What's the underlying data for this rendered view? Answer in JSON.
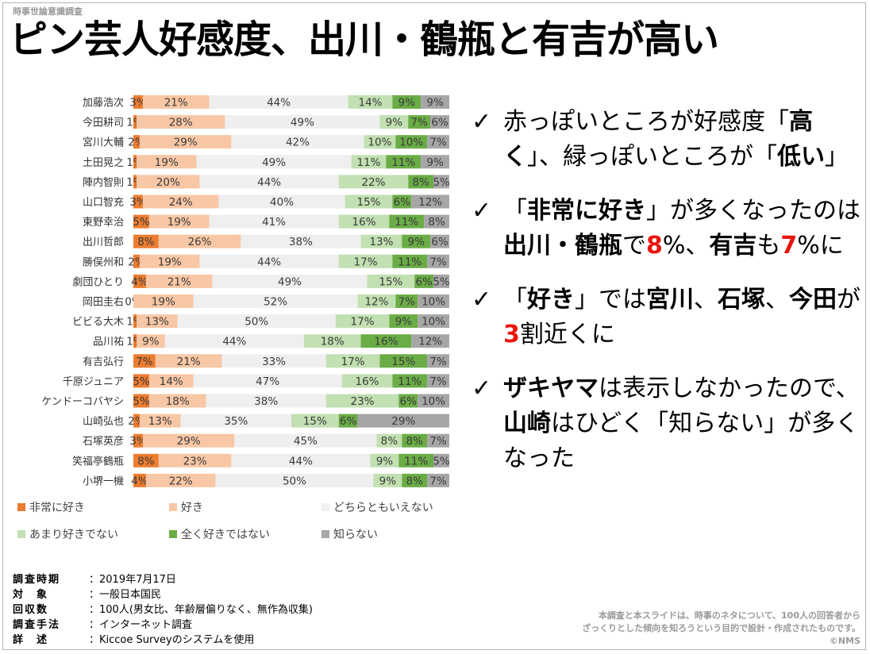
{
  "header_label": "時事世論意識調査",
  "title": "ピン芸人好感度、出川・鶴瓶と有吉が高い",
  "colors": {
    "very_like": "#ec7c30",
    "like": "#f8c7a5",
    "neutral": "#efefef",
    "dislike": "#c2e0b2",
    "strong_dislike": "#6aac46",
    "unknown": "#a6a6a6",
    "accent_red": "#e8160c"
  },
  "chart_data": {
    "type": "bar",
    "orientation": "horizontal-stacked-100",
    "categories": [
      "加藤浩次",
      "今田耕司",
      "宮川大輔",
      "土田晃之",
      "陣内智則",
      "山口智充",
      "東野幸治",
      "出川哲郎",
      "勝俣州和",
      "劇団ひとり",
      "岡田圭右",
      "ビビる大木",
      "品川祐",
      "有吉弘行",
      "千原ジュニア",
      "ケンドーコバヤシ",
      "山崎弘也",
      "石塚英彦",
      "笑福亭鶴瓶",
      "小堺一機"
    ],
    "series": [
      {
        "name": "非常に好き",
        "color": "#ec7c30",
        "values": [
          3,
          1,
          2,
          1,
          1,
          3,
          5,
          8,
          2,
          4,
          0,
          1,
          1,
          7,
          5,
          5,
          2,
          3,
          8,
          4
        ]
      },
      {
        "name": "好き",
        "color": "#f8c7a5",
        "values": [
          21,
          28,
          29,
          19,
          20,
          24,
          19,
          26,
          19,
          21,
          19,
          13,
          9,
          21,
          14,
          18,
          13,
          29,
          23,
          22
        ]
      },
      {
        "name": "どちらともいえない",
        "color": "#efefef",
        "values": [
          44,
          49,
          42,
          49,
          44,
          40,
          41,
          38,
          44,
          49,
          52,
          50,
          44,
          33,
          47,
          38,
          35,
          45,
          44,
          50
        ]
      },
      {
        "name": "あまり好きでない",
        "color": "#c2e0b2",
        "values": [
          14,
          9,
          10,
          11,
          22,
          15,
          16,
          13,
          17,
          15,
          12,
          17,
          18,
          17,
          16,
          23,
          15,
          8,
          9,
          9
        ]
      },
      {
        "name": "全く好きではない",
        "color": "#6aac46",
        "values": [
          9,
          7,
          10,
          11,
          8,
          6,
          11,
          9,
          11,
          6,
          7,
          9,
          16,
          15,
          11,
          6,
          6,
          8,
          11,
          8
        ]
      },
      {
        "name": "知らない",
        "color": "#a6a6a6",
        "values": [
          9,
          6,
          7,
          9,
          5,
          12,
          8,
          6,
          7,
          5,
          10,
          10,
          12,
          7,
          7,
          10,
          29,
          7,
          5,
          7
        ]
      }
    ],
    "value_suffix": "%",
    "xlim": [
      0,
      100
    ],
    "legend_position": "bottom"
  },
  "bullets": [
    [
      {
        "t": "赤っぽいところが好感度「"
      },
      {
        "t": "高く",
        "b": true
      },
      {
        "t": "」、緑っぽいところが「"
      },
      {
        "t": "低い",
        "b": true
      },
      {
        "t": "」"
      }
    ],
    [
      {
        "t": "「"
      },
      {
        "t": "非常に好き",
        "b": true
      },
      {
        "t": "」が多くなったのは"
      },
      {
        "t": "出川・鶴瓶",
        "b": true
      },
      {
        "t": "で"
      },
      {
        "t": "8",
        "r": true
      },
      {
        "t": "%、"
      },
      {
        "t": "有吉",
        "b": true
      },
      {
        "t": "も"
      },
      {
        "t": "7",
        "r": true
      },
      {
        "t": "%に"
      }
    ],
    [
      {
        "t": "「"
      },
      {
        "t": "好き",
        "b": true
      },
      {
        "t": "」では"
      },
      {
        "t": "宮川",
        "b": true
      },
      {
        "t": "、"
      },
      {
        "t": "石塚",
        "b": true
      },
      {
        "t": "、"
      },
      {
        "t": "今田",
        "b": true
      },
      {
        "t": "が"
      },
      {
        "t": "3",
        "r": true
      },
      {
        "t": "割近くに"
      }
    ],
    [
      {
        "t": "ザキヤマ",
        "b": true
      },
      {
        "t": "は表示しなかったので、"
      },
      {
        "t": "山崎",
        "b": true
      },
      {
        "t": "はひどく「知らない」が多くなった"
      }
    ]
  ],
  "check_mark": "✓",
  "survey_info": [
    {
      "k": "調査時期",
      "v": "：2019年7月17日"
    },
    {
      "k": "対　象",
      "v": "：一般日本国民"
    },
    {
      "k": "回収数",
      "v": "：100人(男女比、年齢層偏りなく、無作為収集)"
    },
    {
      "k": "調査手法",
      "v": "：インターネット調査"
    },
    {
      "k": "詳　述",
      "v": "：Kiccoe Surveyのシステムを使用"
    }
  ],
  "disclaimer_lines": [
    "本調査と本スライドは、時事のネタについて、100人の回答者から",
    "ざっくりとした傾向を知ろうという目的で設計・作成されたものです。",
    "©NMS"
  ]
}
